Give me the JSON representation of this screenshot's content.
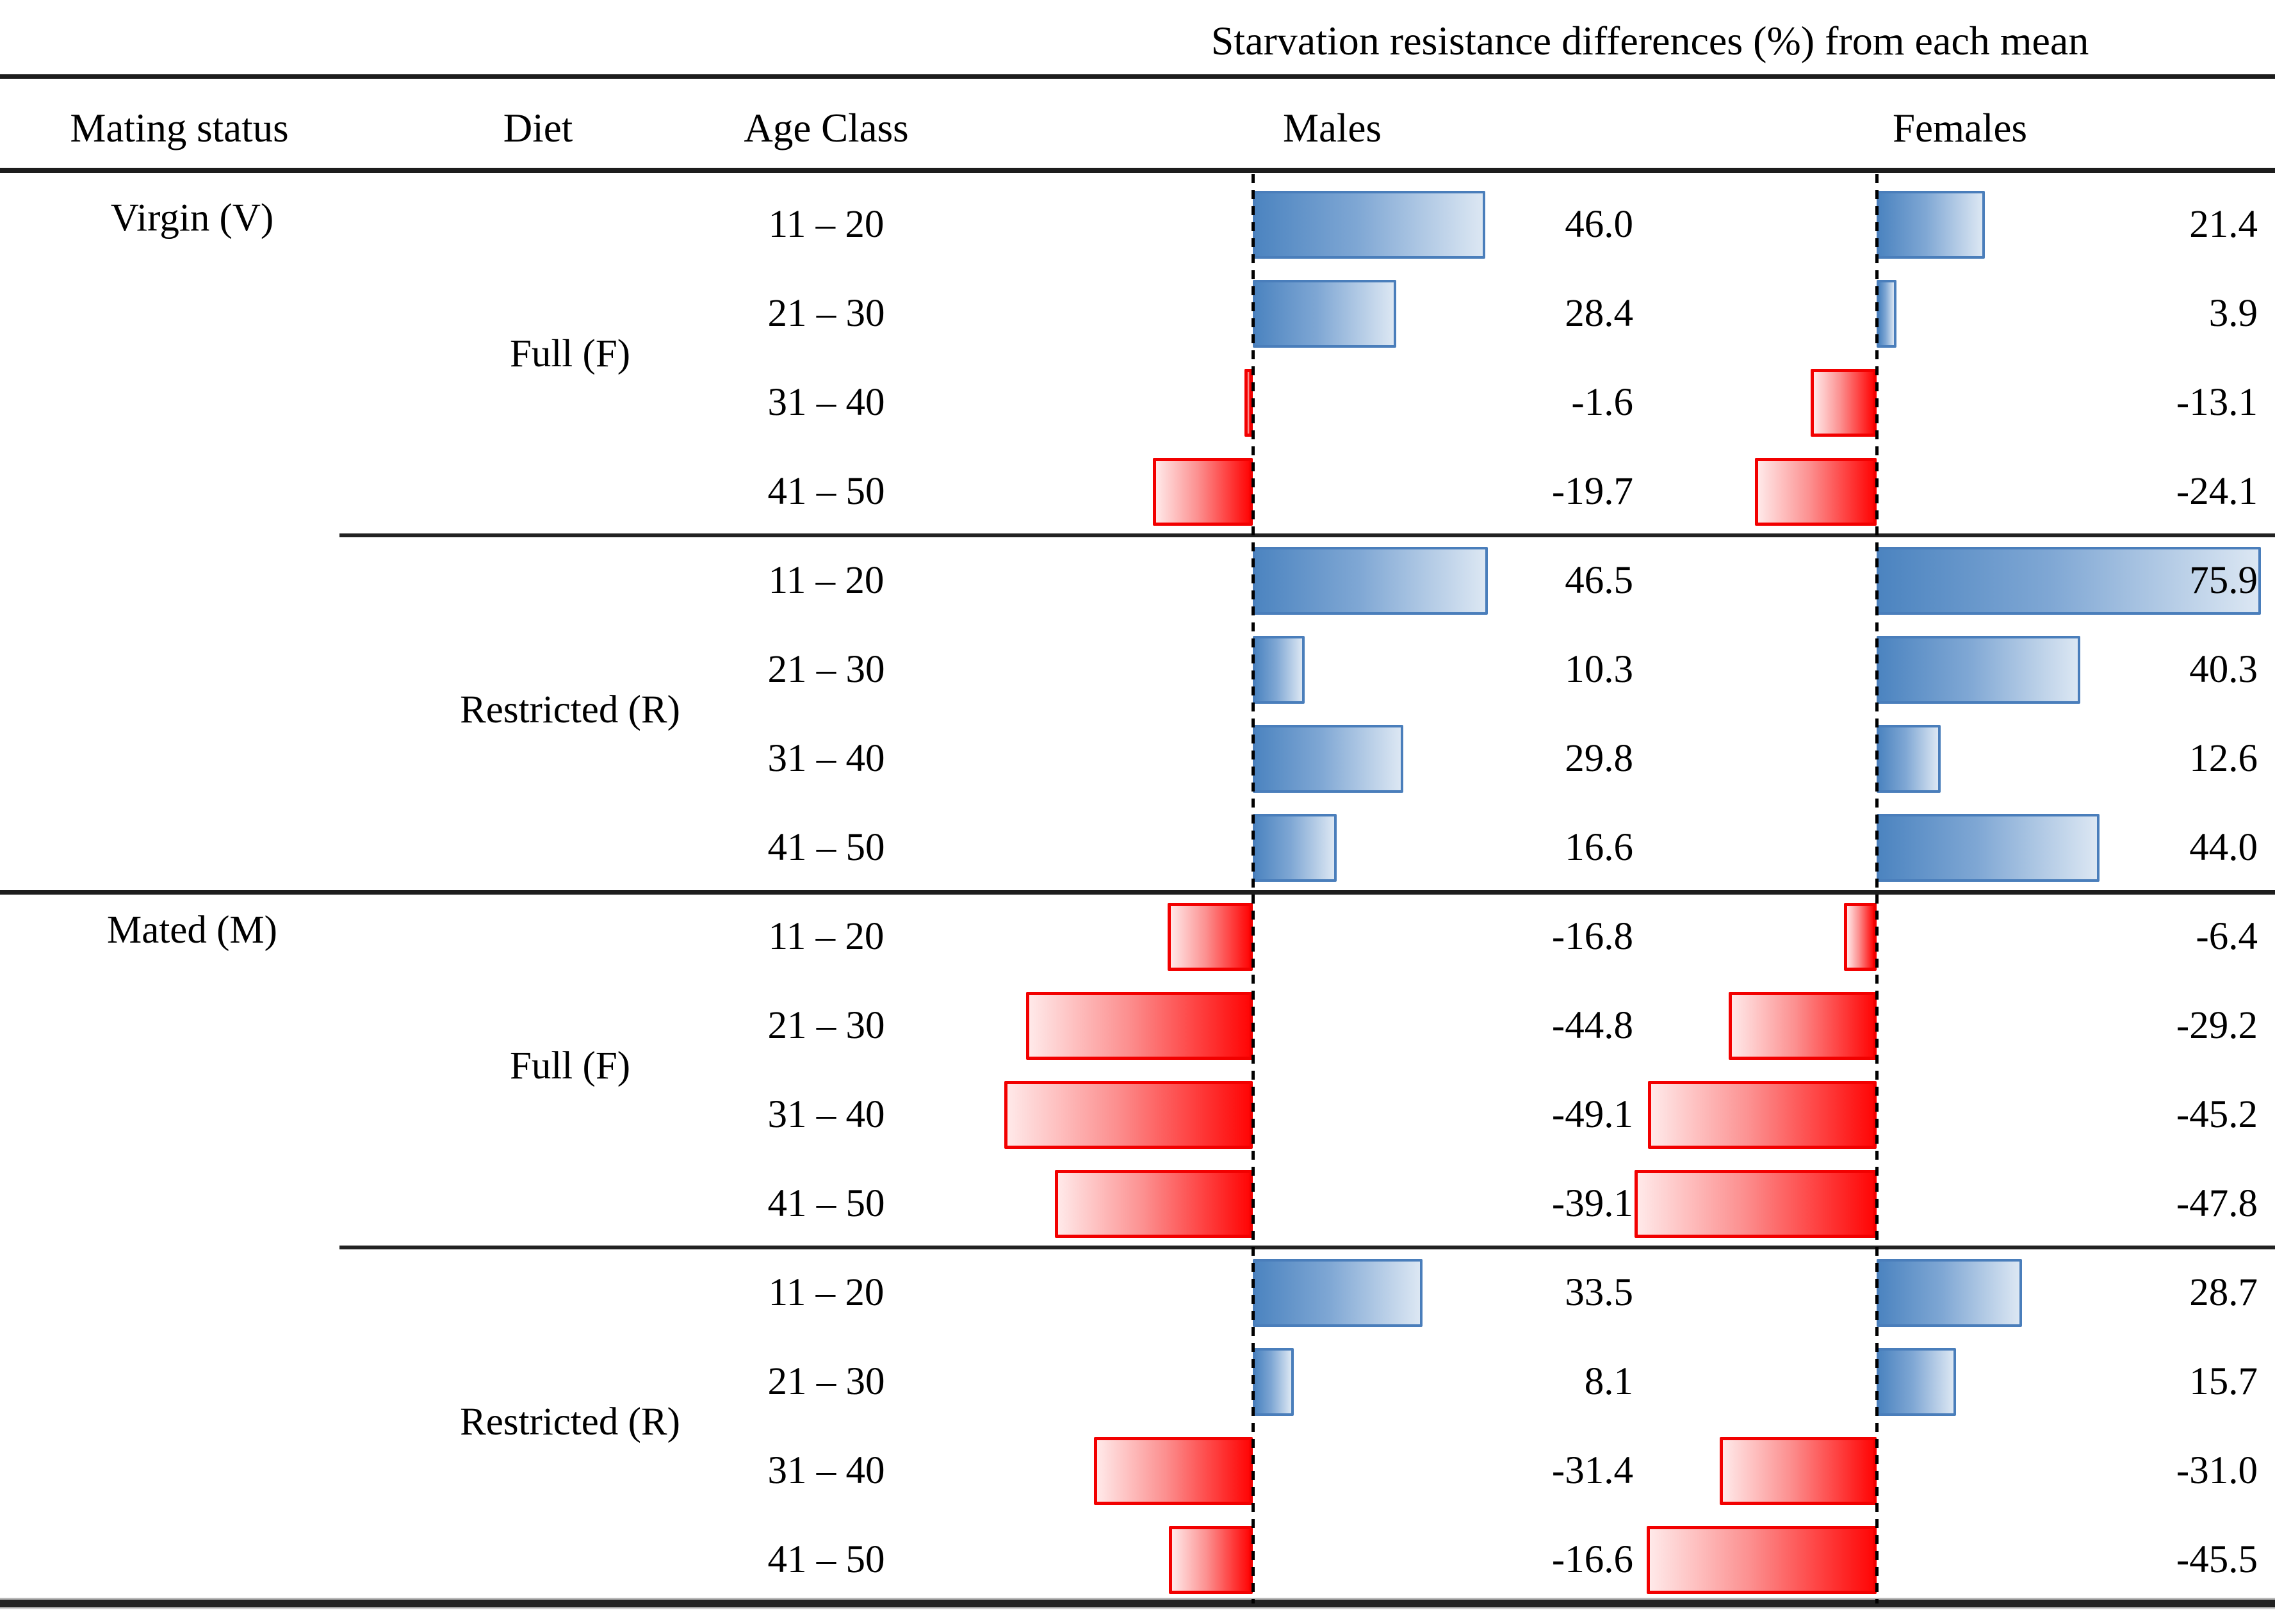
{
  "title": "Starvation resistance differences (%) from each mean",
  "headers": {
    "mating_status": "Mating status",
    "diet": "Diet",
    "age_class": "Age Class",
    "males": "Males",
    "females": "Females"
  },
  "colors": {
    "positive_bar_dark": "#4C84C0",
    "positive_bar_light": "#DCE7F3",
    "positive_bar_border": "#4A7EBB",
    "negative_bar_dark": "#FF0606",
    "negative_bar_light": "#FFE9E9",
    "negative_bar_border": "#F20000",
    "rule_color": "#1d1d1d",
    "text_color": "#000000"
  },
  "chart_data": {
    "type": "bar",
    "orientation": "horizontal",
    "title": "Starvation resistance differences (%) from each mean",
    "unit": "%",
    "baseline": 0,
    "value_format": "one_decimal",
    "legend": "none",
    "grid": "off",
    "series_columns": [
      "Males",
      "Females"
    ],
    "groups": [
      {
        "mating_status": "Virgin (V)",
        "diet": "Full (F)",
        "rows": [
          {
            "age_class": "11 – 20",
            "males": 46.0,
            "females": 21.4
          },
          {
            "age_class": "21 – 30",
            "males": 28.4,
            "females": 3.9
          },
          {
            "age_class": "31 – 40",
            "males": -1.6,
            "females": -13.1
          },
          {
            "age_class": "41 – 50",
            "males": -19.7,
            "females": -24.1
          }
        ]
      },
      {
        "mating_status": "",
        "diet": "Restricted (R)",
        "rows": [
          {
            "age_class": "11 – 20",
            "males": 46.5,
            "females": 75.9
          },
          {
            "age_class": "21 – 30",
            "males": 10.3,
            "females": 40.3
          },
          {
            "age_class": "31 – 40",
            "males": 29.8,
            "females": 12.6
          },
          {
            "age_class": "41 – 50",
            "males": 16.6,
            "females": 44.0
          }
        ]
      },
      {
        "mating_status": "Mated (M)",
        "diet": "Full (F)",
        "rows": [
          {
            "age_class": "11 – 20",
            "males": -16.8,
            "females": -6.4
          },
          {
            "age_class": "21 – 30",
            "males": -44.8,
            "females": -29.2
          },
          {
            "age_class": "31 – 40",
            "males": -49.1,
            "females": -45.2
          },
          {
            "age_class": "41 – 50",
            "males": -39.1,
            "females": -47.8
          }
        ]
      },
      {
        "mating_status": "",
        "diet": "Restricted (R)",
        "rows": [
          {
            "age_class": "11 – 20",
            "males": 33.5,
            "females": 28.7
          },
          {
            "age_class": "21 – 30",
            "males": 8.1,
            "females": 15.7
          },
          {
            "age_class": "31 – 40",
            "males": -31.4,
            "females": -31.0
          },
          {
            "age_class": "41 – 50",
            "males": -16.6,
            "females": -45.5
          }
        ]
      }
    ]
  }
}
